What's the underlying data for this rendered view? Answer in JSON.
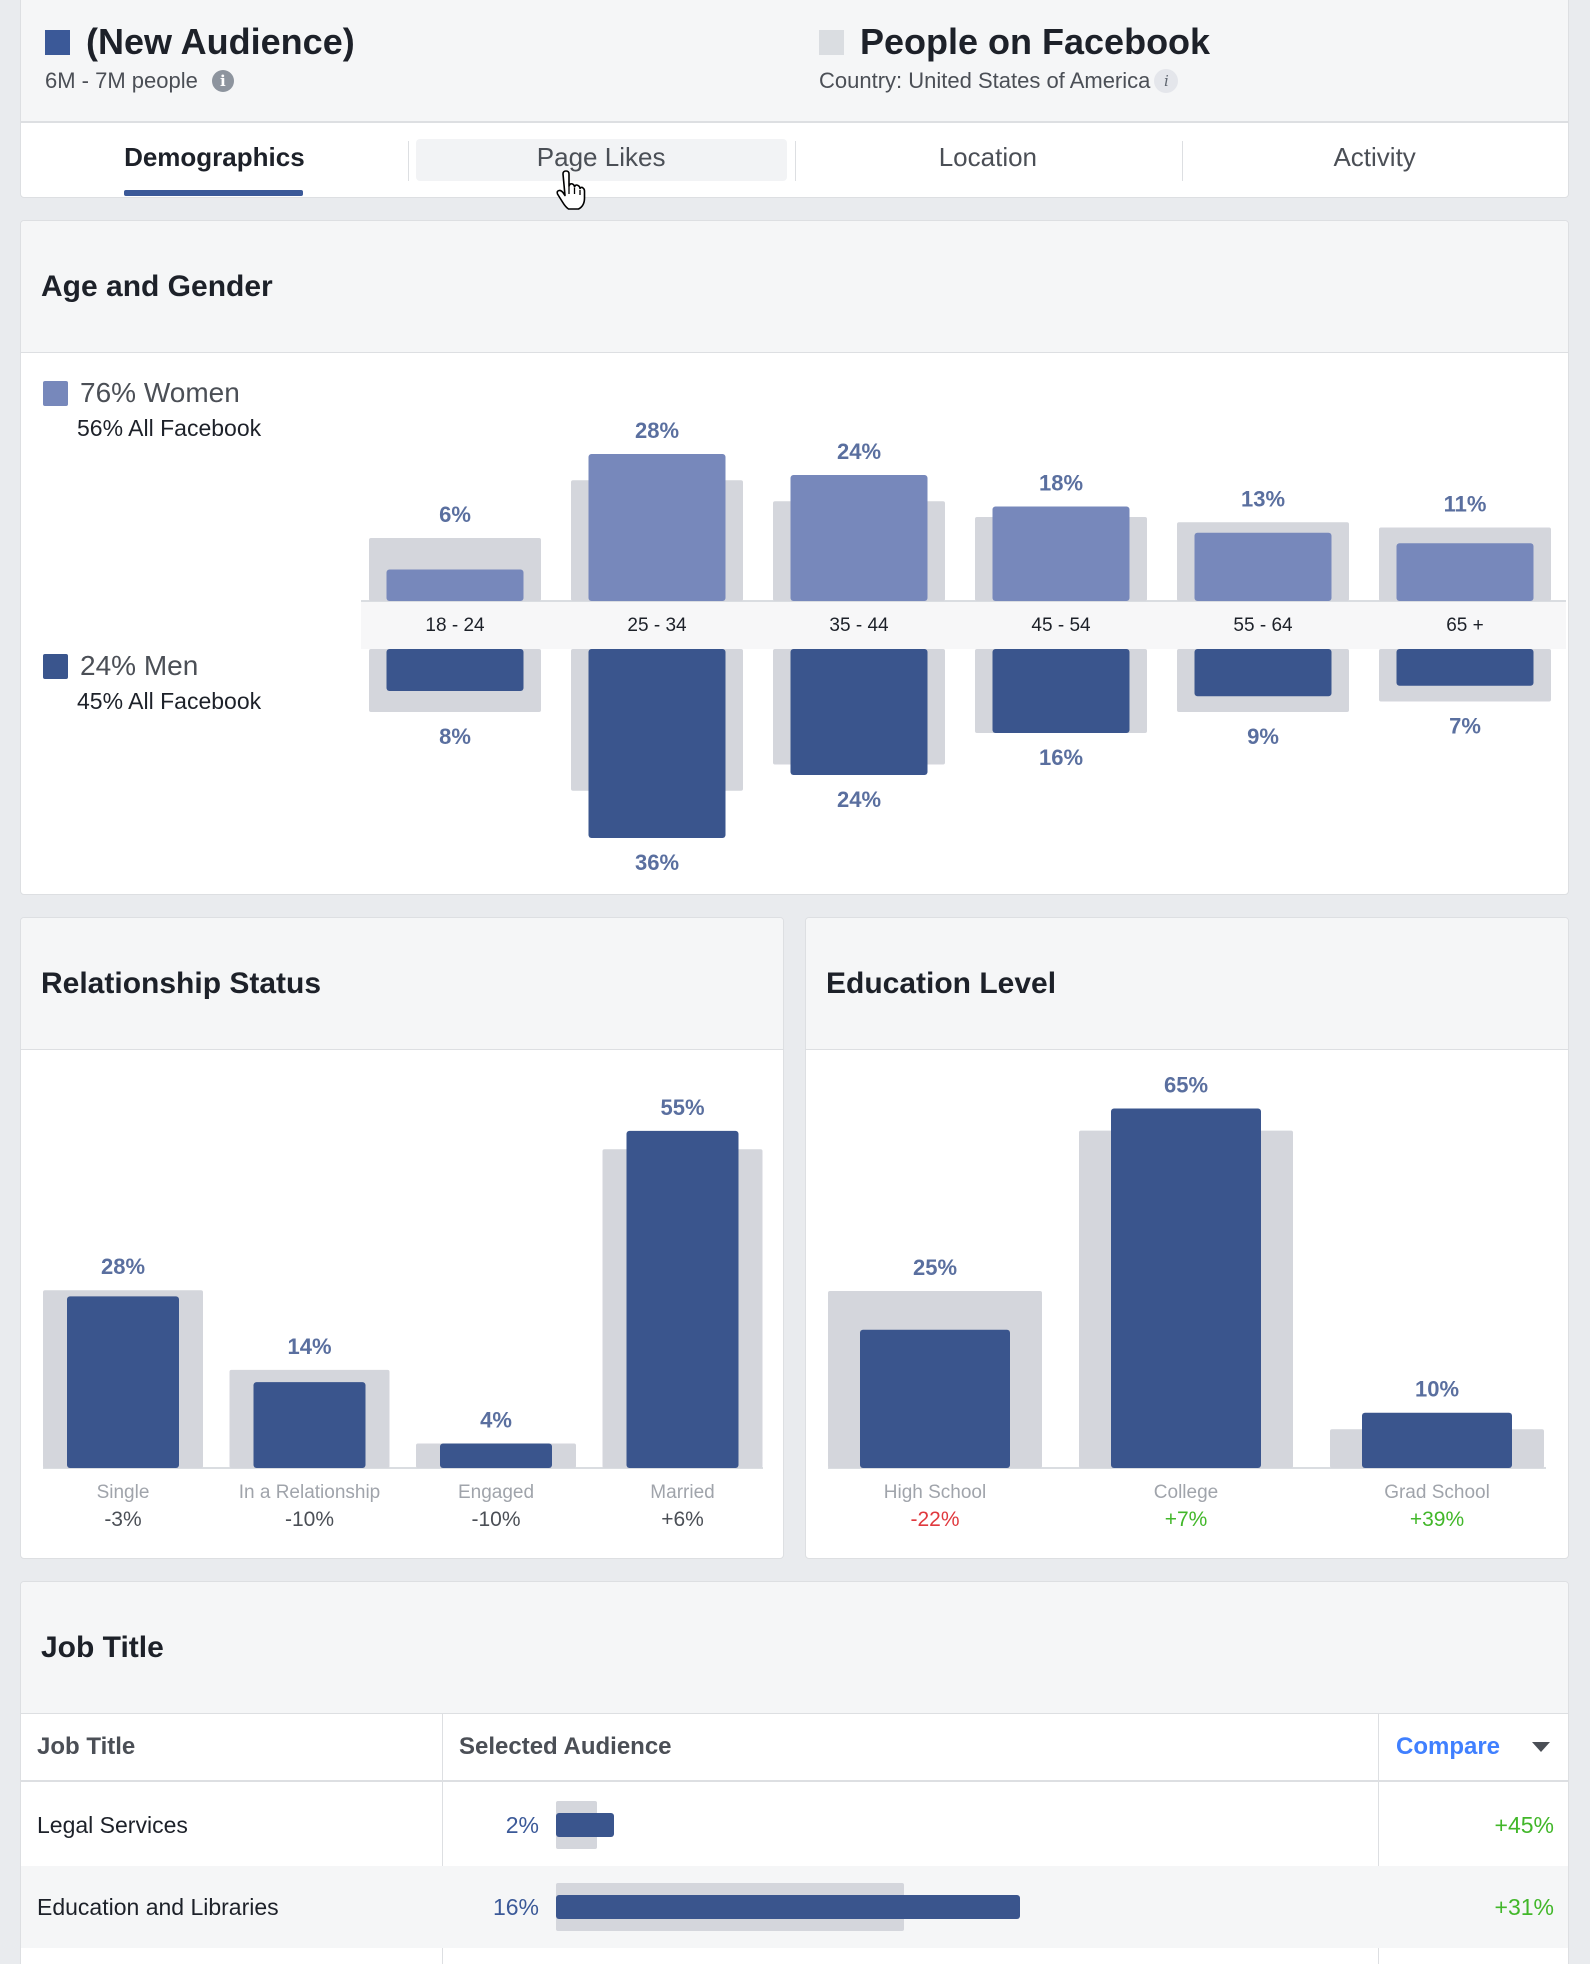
{
  "colors": {
    "audience": "#3b5998",
    "women": "#7788bb",
    "men": "#3a558d",
    "baseline": "#d4d6dc",
    "positive": "#42b72a",
    "negative": "#e0393e",
    "label_blue": "#5a6f9f"
  },
  "header": {
    "audience": {
      "title": "(New Audience)",
      "subtitle": "6M - 7M people",
      "icon": "info-icon"
    },
    "comparison": {
      "title": "People on Facebook",
      "subtitle": "Country: United States of America",
      "icon": "info-icon"
    }
  },
  "tabs": [
    "Demographics",
    "Page Likes",
    "Location",
    "Activity"
  ],
  "age_gender": {
    "title": "Age and Gender",
    "women": {
      "label": "76% Women",
      "sub": "56% All Facebook"
    },
    "men": {
      "label": "24% Men",
      "sub": "45% All Facebook"
    }
  },
  "relationship": {
    "title": "Relationship Status"
  },
  "education": {
    "title": "Education Level"
  },
  "job_title": {
    "title": "Job Title",
    "headers": {
      "col1": "Job Title",
      "col2": "Selected Audience",
      "col3": "Compare"
    },
    "rows": [
      {
        "title": "Legal Services",
        "pct": "2%",
        "compare": "+45%",
        "value": 2,
        "baseline": 1.4
      },
      {
        "title": "Education and Libraries",
        "pct": "16%",
        "compare": "+31%",
        "value": 16,
        "baseline": 12
      }
    ]
  },
  "chart_data": [
    {
      "type": "bar",
      "title": "Age and Gender",
      "categories": [
        "18 - 24",
        "25 - 34",
        "35 - 44",
        "45 - 54",
        "55 - 64",
        "65 +"
      ],
      "series": [
        {
          "name": "76% Women",
          "values": [
            6,
            28,
            24,
            18,
            13,
            11
          ],
          "labels": [
            "6%",
            "28%",
            "24%",
            "18%",
            "13%",
            "11%"
          ],
          "baseline": [
            12,
            23,
            19,
            16,
            15,
            14
          ]
        },
        {
          "name": "24% Men",
          "values": [
            8,
            36,
            24,
            16,
            9,
            7
          ],
          "labels": [
            "8%",
            "36%",
            "24%",
            "16%",
            "9%",
            "7%"
          ],
          "baseline": [
            12,
            27,
            22,
            16,
            12,
            10
          ]
        }
      ]
    },
    {
      "type": "bar",
      "title": "Relationship Status",
      "categories": [
        "Single",
        "In a Relationship",
        "Engaged",
        "Married"
      ],
      "values": [
        28,
        14,
        4,
        55
      ],
      "labels": [
        "28%",
        "14%",
        "4%",
        "55%"
      ],
      "baseline": [
        29,
        16,
        4,
        52
      ],
      "compare": [
        "-3%",
        "-10%",
        "-10%",
        "+6%"
      ],
      "ylim": [
        0,
        60
      ]
    },
    {
      "type": "bar",
      "title": "Education Level",
      "categories": [
        "High School",
        "College",
        "Grad School"
      ],
      "values": [
        25,
        65,
        10
      ],
      "labels": [
        "25%",
        "65%",
        "10%"
      ],
      "baseline": [
        32,
        61,
        7
      ],
      "compare": [
        "-22%",
        "+7%",
        "+39%"
      ],
      "ylim": [
        0,
        70
      ]
    }
  ]
}
